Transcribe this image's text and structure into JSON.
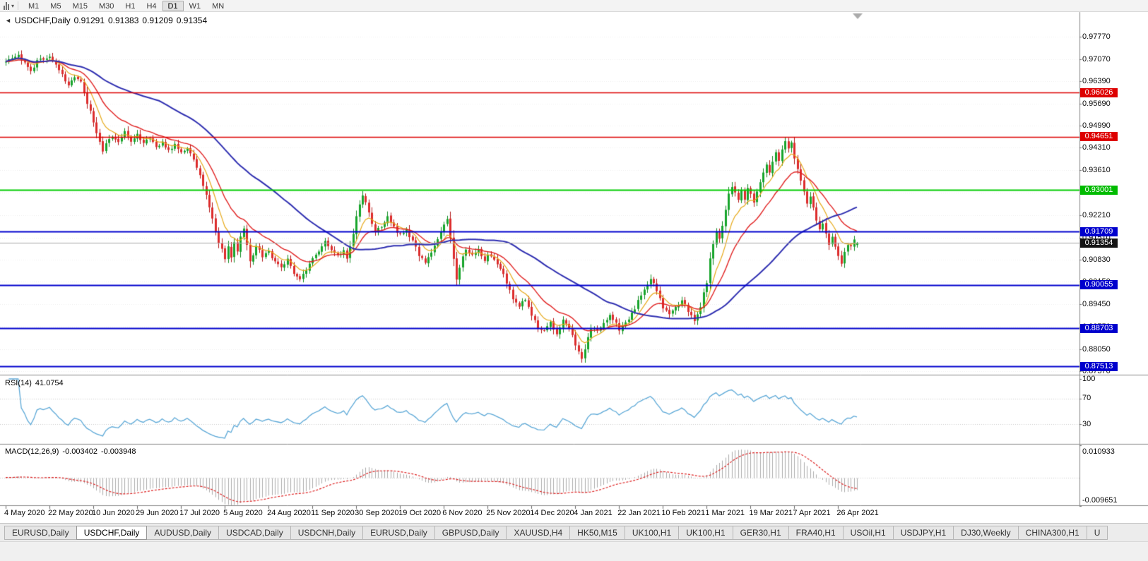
{
  "toolbar": {
    "timeframes": [
      "M1",
      "M5",
      "M15",
      "M30",
      "H1",
      "H4",
      "D1",
      "W1",
      "MN"
    ],
    "active_timeframe": "D1"
  },
  "chart": {
    "symbol_period": "USDCHF,Daily",
    "open": "0.91291",
    "high": "0.91383",
    "low": "0.91209",
    "close": "0.91354"
  },
  "price_axis": {
    "ticks": [
      "0.97770",
      "0.97070",
      "0.96390",
      "0.95690",
      "0.94990",
      "0.94310",
      "0.93610",
      "0.92910",
      "0.92210",
      "0.91510",
      "0.90830",
      "0.90150",
      "0.89450",
      "0.88750",
      "0.88050",
      "0.87370"
    ],
    "badges": [
      {
        "label": "0.96026",
        "color": "#dd0000"
      },
      {
        "label": "0.94651",
        "color": "#dd0000"
      },
      {
        "label": "0.93001",
        "color": "#00bb00"
      },
      {
        "label": "0.91709",
        "color": "#0000cd"
      },
      {
        "label": "0.91354",
        "color": "#141414"
      },
      {
        "label": "0.90055",
        "color": "#0000cd"
      },
      {
        "label": "0.88703",
        "color": "#0000cd"
      },
      {
        "label": "0.87513",
        "color": "#0000cd"
      }
    ]
  },
  "rsi": {
    "name": "RSI(14)",
    "value": "41.0754",
    "levels": [
      "100",
      "70",
      "30"
    ],
    "line_color": "#5aa7d6"
  },
  "macd": {
    "name": "MACD(12,26,9)",
    "value_main": "-0.003402",
    "value_signal": "-0.003948",
    "max_label": "0.010933",
    "min_label": "-0.009651",
    "histogram_color": "#ababab",
    "signal_color": "#dd2020"
  },
  "date_axis": [
    "4 May 2020",
    "22 May 2020",
    "10 Jun 2020",
    "29 Jun 2020",
    "17 Jul 2020",
    "5 Aug 2020",
    "24 Aug 2020",
    "11 Sep 2020",
    "30 Sep 2020",
    "19 Oct 2020",
    "6 Nov 2020",
    "25 Nov 2020",
    "14 Dec 2020",
    "4 Jan 2021",
    "22 Jan 2021",
    "10 Feb 2021",
    "1 Mar 2021",
    "19 Mar 2021",
    "7 Apr 2021",
    "26 Apr 2021"
  ],
  "tabs": {
    "items": [
      "EURUSD,Daily",
      "USDCHF,Daily",
      "AUDUSD,Daily",
      "USDCAD,Daily",
      "USDCNH,Daily",
      "EURUSD,Daily",
      "GBPUSD,Daily",
      "XAUUSD,H4",
      "HK50,M15",
      "UK100,H1",
      "UK100,H1",
      "GER30,H1",
      "FRA40,H1",
      "USOil,H1",
      "USDJPY,H1",
      "DJ30,Weekly",
      "CHINA300,H1",
      "U"
    ],
    "active_index": 1
  },
  "chart_data": {
    "type": "candlestick",
    "symbol": "USDCHF",
    "timeframe": "Daily",
    "bars": 273,
    "bars_per_label": 14,
    "price_range_top": 0.9853,
    "price_range_bottom": 0.8726,
    "up_color": "#17a52b",
    "down_color": "#dd2c2c",
    "up_wick_color": "#0e8a1e",
    "down_wick_color": "#b21616",
    "current_price": 0.91354,
    "last_bar": {
      "open": 0.91291,
      "high": 0.91383,
      "low": 0.91209,
      "close": 0.91354
    },
    "close_anchors": [
      [
        0,
        0.9695
      ],
      [
        2,
        0.9712
      ],
      [
        4,
        0.9718
      ],
      [
        6,
        0.9692
      ],
      [
        8,
        0.9672
      ],
      [
        10,
        0.9698
      ],
      [
        12,
        0.9708
      ],
      [
        14,
        0.9712
      ],
      [
        16,
        0.9688
      ],
      [
        18,
        0.9658
      ],
      [
        20,
        0.9628
      ],
      [
        22,
        0.9648
      ],
      [
        24,
        0.9635
      ],
      [
        26,
        0.9572
      ],
      [
        28,
        0.9512
      ],
      [
        30,
        0.9448
      ],
      [
        31,
        0.9418
      ],
      [
        32,
        0.944
      ],
      [
        34,
        0.9468
      ],
      [
        36,
        0.9448
      ],
      [
        38,
        0.9478
      ],
      [
        40,
        0.9455
      ],
      [
        42,
        0.9472
      ],
      [
        44,
        0.9444
      ],
      [
        46,
        0.9462
      ],
      [
        48,
        0.943
      ],
      [
        50,
        0.9452
      ],
      [
        52,
        0.942
      ],
      [
        54,
        0.9444
      ],
      [
        56,
        0.9414
      ],
      [
        58,
        0.9432
      ],
      [
        60,
        0.939
      ],
      [
        62,
        0.9348
      ],
      [
        64,
        0.9285
      ],
      [
        66,
        0.921
      ],
      [
        68,
        0.9135
      ],
      [
        70,
        0.909
      ],
      [
        71,
        0.9122
      ],
      [
        72,
        0.9094
      ],
      [
        73,
        0.9138
      ],
      [
        74,
        0.911
      ],
      [
        75,
        0.9158
      ],
      [
        76,
        0.9182
      ],
      [
        77,
        0.9134
      ],
      [
        78,
        0.908
      ],
      [
        79,
        0.91
      ],
      [
        80,
        0.9128
      ],
      [
        82,
        0.909
      ],
      [
        84,
        0.9112
      ],
      [
        86,
        0.9074
      ],
      [
        88,
        0.9058
      ],
      [
        90,
        0.9088
      ],
      [
        92,
        0.9044
      ],
      [
        94,
        0.9024
      ],
      [
        96,
        0.9054
      ],
      [
        98,
        0.9084
      ],
      [
        100,
        0.9114
      ],
      [
        102,
        0.9138
      ],
      [
        104,
        0.9118
      ],
      [
        106,
        0.9094
      ],
      [
        108,
        0.911
      ],
      [
        109,
        0.9084
      ],
      [
        110,
        0.9124
      ],
      [
        111,
        0.9164
      ],
      [
        112,
        0.9214
      ],
      [
        113,
        0.9258
      ],
      [
        114,
        0.9288
      ],
      [
        115,
        0.9262
      ],
      [
        116,
        0.923
      ],
      [
        117,
        0.92
      ],
      [
        118,
        0.917
      ],
      [
        120,
        0.919
      ],
      [
        122,
        0.9218
      ],
      [
        124,
        0.9184
      ],
      [
        126,
        0.916
      ],
      [
        128,
        0.9174
      ],
      [
        130,
        0.9144
      ],
      [
        132,
        0.9094
      ],
      [
        134,
        0.9074
      ],
      [
        136,
        0.91
      ],
      [
        138,
        0.9144
      ],
      [
        140,
        0.9192
      ],
      [
        141,
        0.9206
      ],
      [
        142,
        0.9154
      ],
      [
        143,
        0.9084
      ],
      [
        144,
        0.9024
      ],
      [
        145,
        0.906
      ],
      [
        146,
        0.909
      ],
      [
        147,
        0.9114
      ],
      [
        149,
        0.9094
      ],
      [
        151,
        0.911
      ],
      [
        153,
        0.9084
      ],
      [
        154,
        0.91
      ],
      [
        156,
        0.908
      ],
      [
        158,
        0.906
      ],
      [
        160,
        0.9014
      ],
      [
        162,
        0.8964
      ],
      [
        164,
        0.894
      ],
      [
        166,
        0.896
      ],
      [
        168,
        0.891
      ],
      [
        170,
        0.8874
      ],
      [
        172,
        0.886
      ],
      [
        174,
        0.889
      ],
      [
        176,
        0.885
      ],
      [
        178,
        0.8902
      ],
      [
        180,
        0.8874
      ],
      [
        182,
        0.882
      ],
      [
        183,
        0.8794
      ],
      [
        184,
        0.8774
      ],
      [
        185,
        0.8804
      ],
      [
        186,
        0.8844
      ],
      [
        187,
        0.8872
      ],
      [
        189,
        0.886
      ],
      [
        191,
        0.889
      ],
      [
        193,
        0.891
      ],
      [
        195,
        0.8884
      ],
      [
        196,
        0.8864
      ],
      [
        198,
        0.889
      ],
      [
        200,
        0.8914
      ],
      [
        202,
        0.8954
      ],
      [
        204,
        0.8994
      ],
      [
        206,
        0.9024
      ],
      [
        208,
        0.899
      ],
      [
        210,
        0.8934
      ],
      [
        212,
        0.891
      ],
      [
        214,
        0.8934
      ],
      [
        216,
        0.896
      ],
      [
        218,
        0.8924
      ],
      [
        220,
        0.8894
      ],
      [
        222,
        0.894
      ],
      [
        224,
        0.9014
      ],
      [
        225,
        0.9084
      ],
      [
        226,
        0.9134
      ],
      [
        227,
        0.9174
      ],
      [
        228,
        0.915
      ],
      [
        229,
        0.9194
      ],
      [
        230,
        0.9234
      ],
      [
        231,
        0.9284
      ],
      [
        232,
        0.9314
      ],
      [
        233,
        0.9294
      ],
      [
        234,
        0.9264
      ],
      [
        235,
        0.93
      ],
      [
        236,
        0.9274
      ],
      [
        237,
        0.931
      ],
      [
        238,
        0.929
      ],
      [
        239,
        0.9264
      ],
      [
        240,
        0.9294
      ],
      [
        241,
        0.9324
      ],
      [
        242,
        0.935
      ],
      [
        243,
        0.9374
      ],
      [
        244,
        0.9354
      ],
      [
        245,
        0.939
      ],
      [
        246,
        0.9414
      ],
      [
        247,
        0.9394
      ],
      [
        248,
        0.9424
      ],
      [
        249,
        0.945
      ],
      [
        250,
        0.943
      ],
      [
        251,
        0.9444
      ],
      [
        252,
        0.94
      ],
      [
        253,
        0.9364
      ],
      [
        254,
        0.9324
      ],
      [
        255,
        0.9294
      ],
      [
        256,
        0.926
      ],
      [
        257,
        0.928
      ],
      [
        258,
        0.924
      ],
      [
        259,
        0.921
      ],
      [
        260,
        0.918
      ],
      [
        261,
        0.92
      ],
      [
        262,
        0.9164
      ],
      [
        263,
        0.9134
      ],
      [
        264,
        0.916
      ],
      [
        265,
        0.9124
      ],
      [
        266,
        0.91
      ],
      [
        267,
        0.9074
      ],
      [
        268,
        0.911
      ],
      [
        269,
        0.9134
      ],
      [
        270,
        0.9124
      ],
      [
        271,
        0.9144
      ],
      [
        272,
        0.91354
      ]
    ],
    "moving_averages": [
      {
        "period": 8,
        "type": "ema",
        "color": "#e6a817",
        "width": 1.2
      },
      {
        "period": 18,
        "type": "ema",
        "color": "#e02020",
        "width": 1.4
      },
      {
        "period": 50,
        "type": "sma",
        "color": "#2d2db0",
        "width": 2
      }
    ],
    "horizontal_lines": [
      {
        "price": 0.96026,
        "color": "#dd0000",
        "width": 1.4
      },
      {
        "price": 0.94651,
        "color": "#dd0000",
        "width": 1.4
      },
      {
        "price": 0.93001,
        "color": "#00cc00",
        "width": 2
      },
      {
        "price": 0.91709,
        "color": "#0000cd",
        "width": 1.8
      },
      {
        "price": 0.90055,
        "color": "#0000cd",
        "width": 1.8
      },
      {
        "price": 0.88703,
        "color": "#0000cd",
        "width": 1.8
      },
      {
        "price": 0.87513,
        "color": "#0000cd",
        "width": 1.8
      }
    ],
    "indicators": [
      "RSI(14)",
      "MACD(12,26,9)"
    ]
  }
}
